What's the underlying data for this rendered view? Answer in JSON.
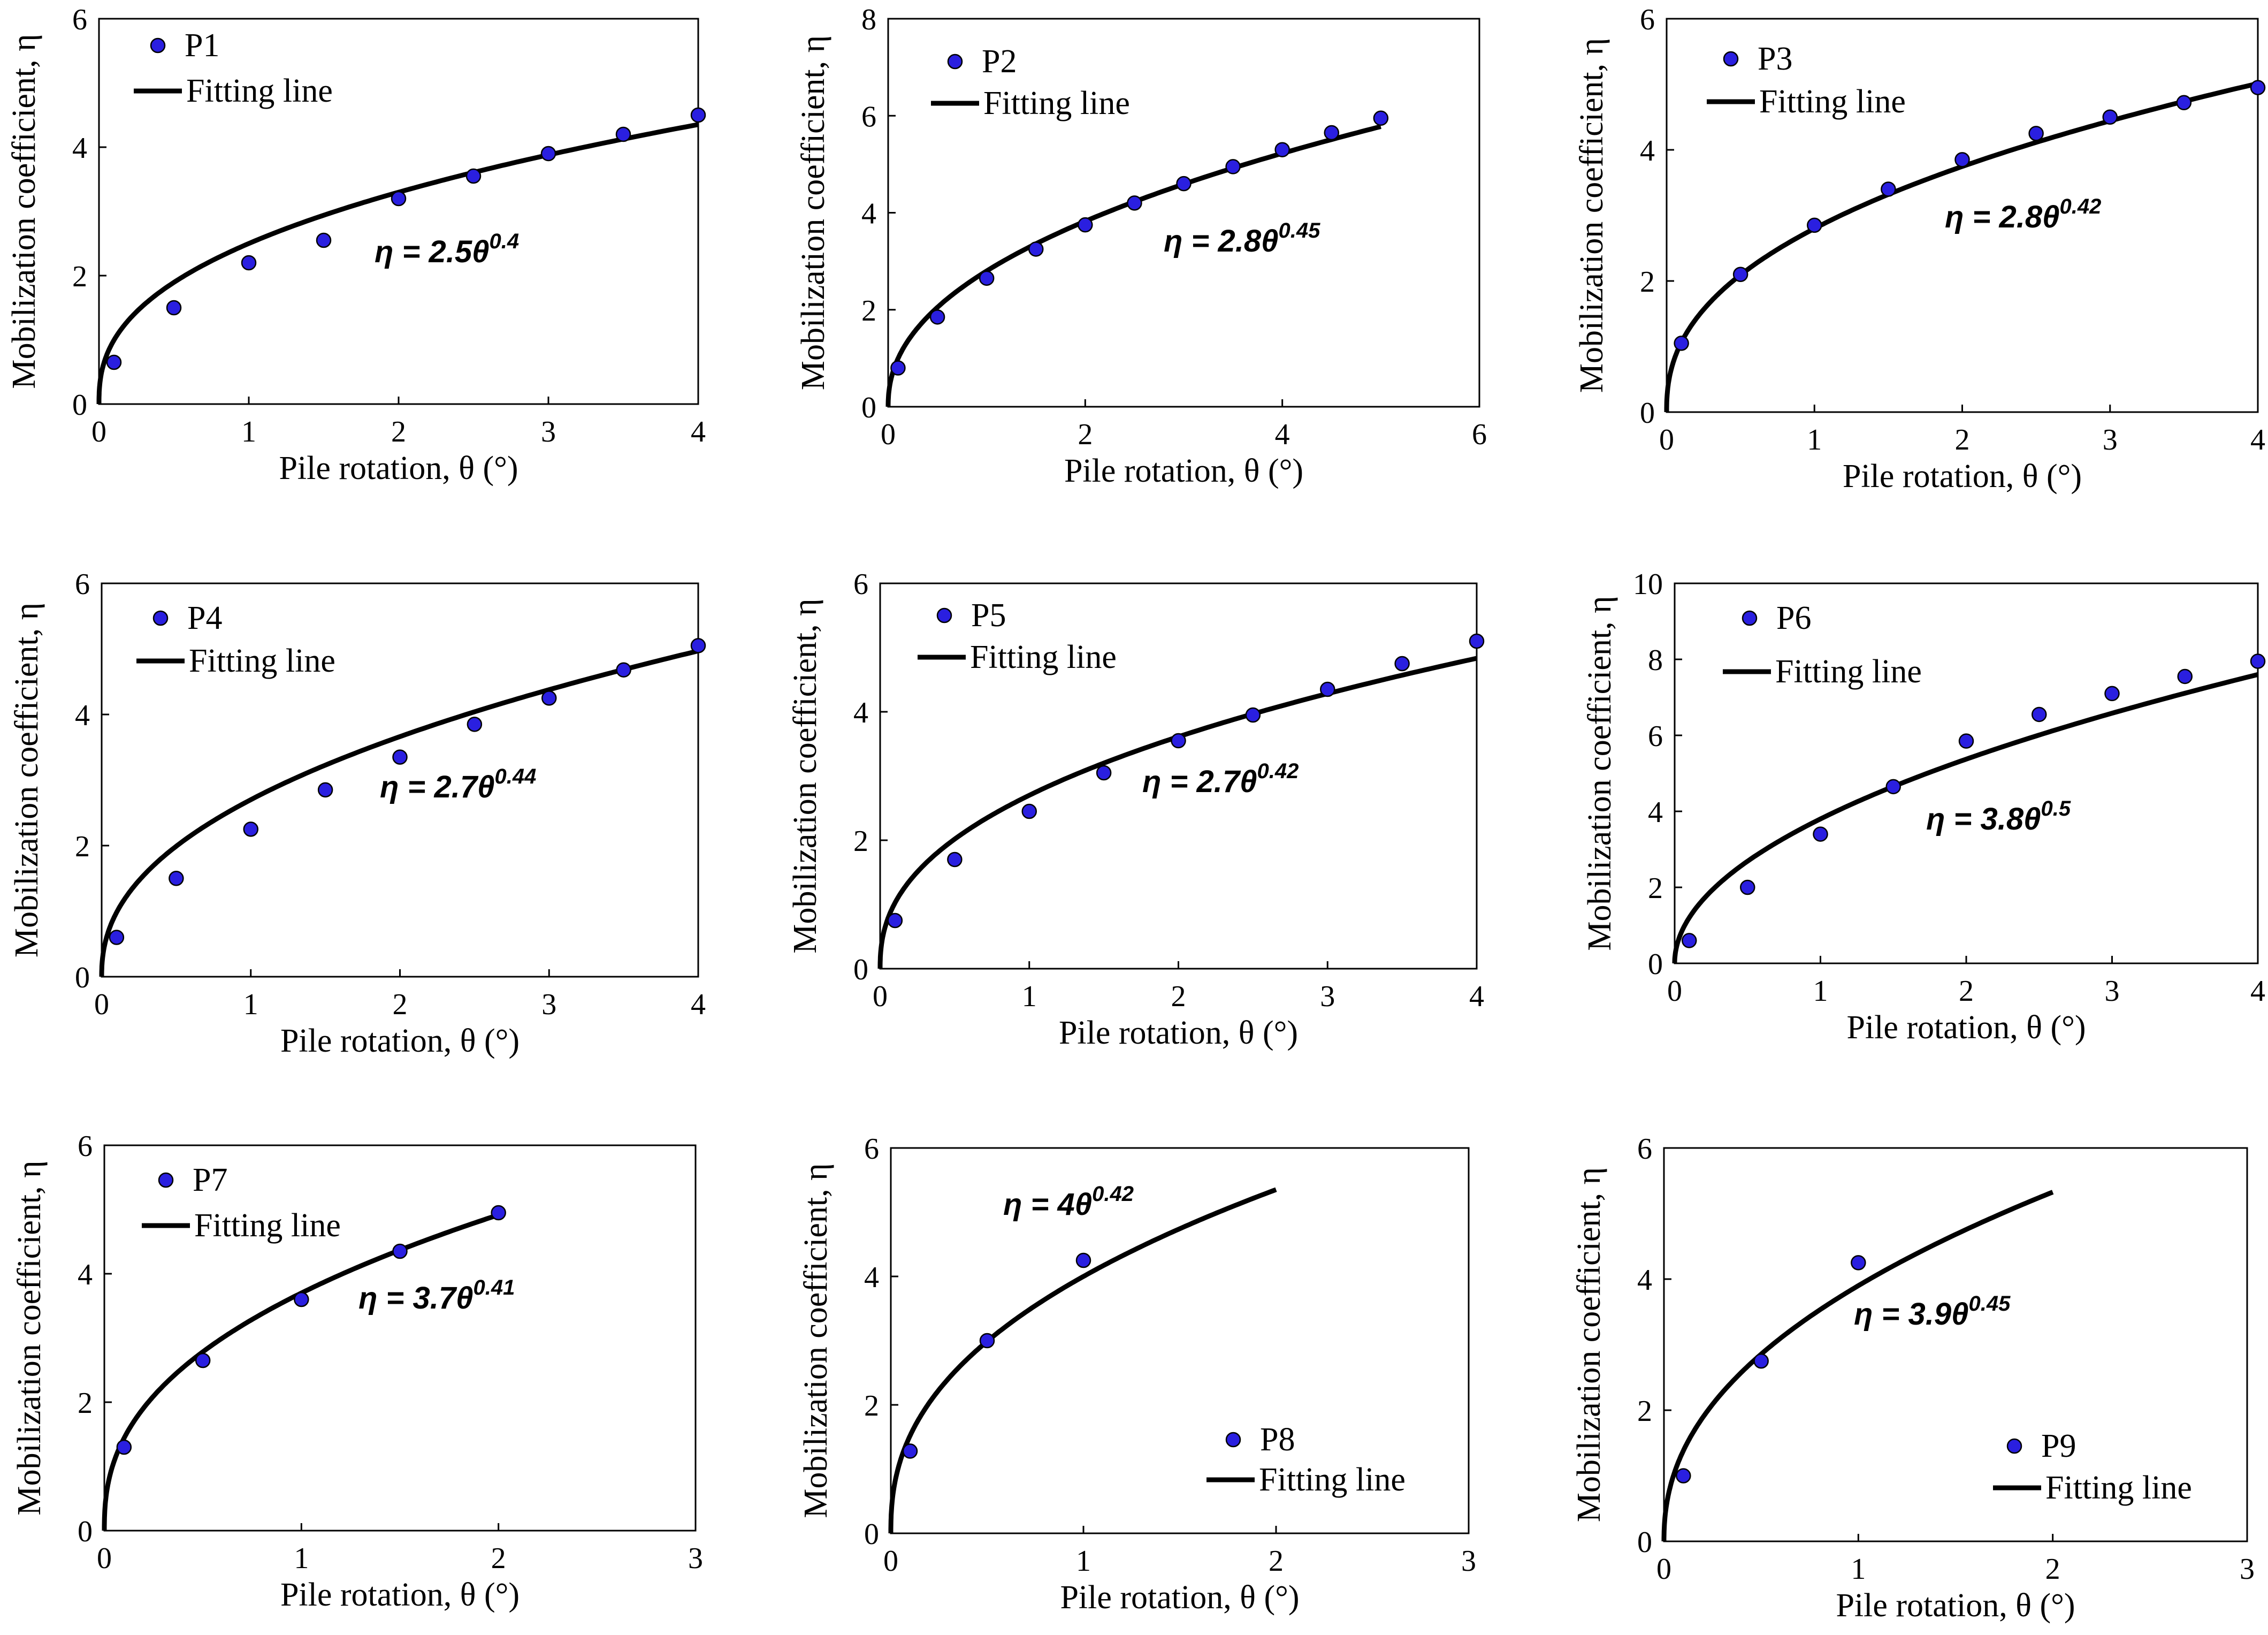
{
  "colors": {
    "marker_fill": "#2a1fe0",
    "marker_stroke": "#000000",
    "line": "#000000",
    "axis": "#000000"
  },
  "chart_data": [
    {
      "type": "scatter",
      "xlabel": "Pile rotation, θ (°)",
      "ylabel": "Mobilization coefficient, η",
      "xlim": [
        0,
        4
      ],
      "ylim": [
        0,
        6
      ],
      "xticks": [
        0,
        1,
        2,
        3,
        4
      ],
      "yticks": [
        0,
        2,
        4,
        6
      ],
      "legend": {
        "points_label": "P1",
        "line_label": "Fitting line",
        "placement": "top-left"
      },
      "points": {
        "x": [
          0.1,
          0.5,
          1,
          1.5,
          2,
          2.5,
          3,
          3.5,
          4
        ],
        "y": [
          0.65,
          1.5,
          2.2,
          2.55,
          3.2,
          3.55,
          3.9,
          4.2,
          4.5
        ]
      },
      "fit": {
        "a": 2.5,
        "b": 0.4,
        "x_end": 4,
        "equation_prefix": "η = 2.5θ",
        "equation_exp": "0.4"
      }
    },
    {
      "type": "scatter",
      "xlabel": "Pile rotation, θ (°)",
      "ylabel": "Mobilization coefficient, η",
      "xlim": [
        0,
        6
      ],
      "ylim": [
        0,
        8
      ],
      "xticks": [
        0,
        2,
        4,
        6
      ],
      "yticks": [
        0,
        2,
        4,
        6,
        8
      ],
      "legend": {
        "points_label": "P2",
        "line_label": "Fitting line",
        "placement": "top-left"
      },
      "points": {
        "x": [
          0.1,
          0.5,
          1,
          1.5,
          2,
          2.5,
          3,
          3.5,
          4,
          4.5,
          5
        ],
        "y": [
          0.8,
          1.85,
          2.65,
          3.25,
          3.75,
          4.2,
          4.6,
          4.95,
          5.3,
          5.65,
          5.95
        ]
      },
      "fit": {
        "a": 2.8,
        "b": 0.45,
        "x_end": 5,
        "equation_prefix": "η = 2.8θ",
        "equation_exp": "0.45"
      }
    },
    {
      "type": "scatter",
      "xlabel": "Pile rotation, θ (°)",
      "ylabel": "Mobilization coefficient, η",
      "xlim": [
        0,
        4
      ],
      "ylim": [
        0,
        6
      ],
      "xticks": [
        0,
        1,
        2,
        3,
        4
      ],
      "yticks": [
        0,
        2,
        4,
        6
      ],
      "legend": {
        "points_label": "P3",
        "line_label": "Fitting line",
        "placement": "top-left"
      },
      "points": {
        "x": [
          0.1,
          0.5,
          1,
          1.5,
          2,
          2.5,
          3,
          3.5,
          4
        ],
        "y": [
          1.05,
          2.1,
          2.85,
          3.4,
          3.85,
          4.25,
          4.5,
          4.72,
          4.95
        ]
      },
      "fit": {
        "a": 2.8,
        "b": 0.42,
        "x_end": 4,
        "equation_prefix": "η = 2.8θ",
        "equation_exp": "0.42"
      }
    },
    {
      "type": "scatter",
      "xlabel": "Pile rotation, θ (°)",
      "ylabel": "Mobilization coefficient, η",
      "xlim": [
        0,
        4
      ],
      "ylim": [
        0,
        6
      ],
      "xticks": [
        0,
        1,
        2,
        3,
        4
      ],
      "yticks": [
        0,
        2,
        4,
        6
      ],
      "legend": {
        "points_label": "P4",
        "line_label": "Fitting line",
        "placement": "top-left"
      },
      "points": {
        "x": [
          0.1,
          0.5,
          1,
          1.5,
          2,
          2.5,
          3,
          3.5,
          4
        ],
        "y": [
          0.6,
          1.5,
          2.25,
          2.85,
          3.35,
          3.85,
          4.25,
          4.68,
          5.05
        ]
      },
      "fit": {
        "a": 2.7,
        "b": 0.44,
        "x_end": 4,
        "equation_prefix": "η = 2.7θ",
        "equation_exp": "0.44"
      }
    },
    {
      "type": "scatter",
      "xlabel": "Pile rotation, θ (°)",
      "ylabel": "Mobilization coefficient, η",
      "xlim": [
        0,
        4
      ],
      "ylim": [
        0,
        6
      ],
      "xticks": [
        0,
        1,
        2,
        3,
        4
      ],
      "yticks": [
        0,
        2,
        4,
        6
      ],
      "legend": {
        "points_label": "P5",
        "line_label": "Fitting line",
        "placement": "top-left"
      },
      "points": {
        "x": [
          0.1,
          0.5,
          1,
          1.5,
          2,
          2.5,
          3,
          3.5,
          4
        ],
        "y": [
          0.75,
          1.7,
          2.45,
          3.05,
          3.55,
          3.95,
          4.35,
          4.75,
          5.1
        ]
      },
      "fit": {
        "a": 2.7,
        "b": 0.42,
        "x_end": 4,
        "equation_prefix": "η = 2.7θ",
        "equation_exp": "0.42"
      }
    },
    {
      "type": "scatter",
      "xlabel": "Pile rotation, θ (°)",
      "ylabel": "Mobilization coefficient, η",
      "xlim": [
        0,
        4
      ],
      "ylim": [
        0,
        10
      ],
      "xticks": [
        0,
        1,
        2,
        3,
        4
      ],
      "yticks": [
        0,
        2,
        4,
        6,
        8,
        10
      ],
      "legend": {
        "points_label": "P6",
        "line_label": "Fitting line",
        "placement": "top-left"
      },
      "points": {
        "x": [
          0.1,
          0.5,
          1,
          1.5,
          2,
          2.5,
          3,
          3.5,
          4
        ],
        "y": [
          0.6,
          2.0,
          3.4,
          4.65,
          5.85,
          6.55,
          7.1,
          7.55,
          7.95
        ]
      },
      "fit": {
        "a": 3.8,
        "b": 0.5,
        "x_end": 4,
        "equation_prefix": "η = 3.8θ",
        "equation_exp": "0.5"
      }
    },
    {
      "type": "scatter",
      "xlabel": "Pile rotation, θ (°)",
      "ylabel": "Mobilization coefficient, η",
      "xlim": [
        0,
        3
      ],
      "ylim": [
        0,
        6
      ],
      "xticks": [
        0,
        1,
        2,
        3
      ],
      "yticks": [
        0,
        2,
        4,
        6
      ],
      "legend": {
        "points_label": "P7",
        "line_label": "Fitting line",
        "placement": "top-left"
      },
      "points": {
        "x": [
          0.1,
          0.5,
          1,
          1.5,
          2
        ],
        "y": [
          1.3,
          2.65,
          3.6,
          4.35,
          4.95
        ]
      },
      "fit": {
        "a": 3.7,
        "b": 0.41,
        "x_end": 2,
        "equation_prefix": "η = 3.7θ",
        "equation_exp": "0.41"
      }
    },
    {
      "type": "scatter",
      "xlabel": "Pile rotation, θ (°)",
      "ylabel": "Mobilization coefficient, η",
      "xlim": [
        0,
        3
      ],
      "ylim": [
        0,
        6
      ],
      "xticks": [
        0,
        1,
        2,
        3
      ],
      "yticks": [
        0,
        2,
        4,
        6
      ],
      "legend": {
        "points_label": "P8",
        "line_label": "Fitting line",
        "placement": "bottom-right"
      },
      "points": {
        "x": [
          0.1,
          0.5,
          1
        ],
        "y": [
          1.28,
          3.0,
          4.25
        ]
      },
      "fit": {
        "a": 4,
        "b": 0.42,
        "x_end": 2,
        "equation_prefix": "η = 4θ",
        "equation_exp": "0.42"
      }
    },
    {
      "type": "scatter",
      "xlabel": "Pile rotation, θ (°)",
      "ylabel": "Mobilization coefficient, η",
      "xlim": [
        0,
        3
      ],
      "ylim": [
        0,
        6
      ],
      "xticks": [
        0,
        1,
        2,
        3
      ],
      "yticks": [
        0,
        2,
        4,
        6
      ],
      "legend": {
        "points_label": "P9",
        "line_label": "Fitting line",
        "placement": "bottom-right"
      },
      "points": {
        "x": [
          0.1,
          0.5,
          1
        ],
        "y": [
          1.0,
          2.75,
          4.25
        ]
      },
      "fit": {
        "a": 3.9,
        "b": 0.45,
        "x_end": 2,
        "equation_prefix": "η = 3.9θ",
        "equation_exp": "0.45"
      }
    }
  ]
}
